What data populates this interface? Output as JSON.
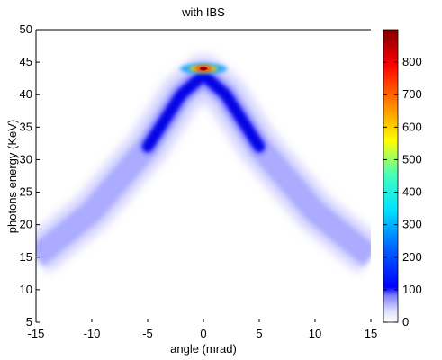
{
  "chart_data": {
    "type": "heatmap",
    "title": "with IBS",
    "xlabel": "angle (mrad)",
    "ylabel": "photons energy (KeV)",
    "xlim": [
      -15,
      15
    ],
    "ylim": [
      5,
      50
    ],
    "x_ticks": [
      "-15",
      "-10",
      "-5",
      "0",
      "5",
      "10",
      "15"
    ],
    "y_ticks": [
      "5",
      "10",
      "15",
      "20",
      "25",
      "30",
      "35",
      "40",
      "45",
      "50"
    ],
    "colorbar": {
      "range": [
        0,
        900
      ],
      "colormap": "jet",
      "ticks": [
        "0",
        "100",
        "200",
        "300",
        "400",
        "500",
        "600",
        "700",
        "800"
      ]
    },
    "ridge": [
      {
        "x": -15,
        "y": 15
      },
      {
        "x": -10,
        "y": 22
      },
      {
        "x": -5,
        "y": 32
      },
      {
        "x": -2,
        "y": 40
      },
      {
        "x": 0,
        "y": 43
      },
      {
        "x": 2,
        "y": 40
      },
      {
        "x": 5,
        "y": 32
      },
      {
        "x": 10,
        "y": 22
      },
      {
        "x": 15,
        "y": 15
      }
    ],
    "peak": {
      "x": 0,
      "y": 44,
      "value": 880
    },
    "grid": false
  }
}
